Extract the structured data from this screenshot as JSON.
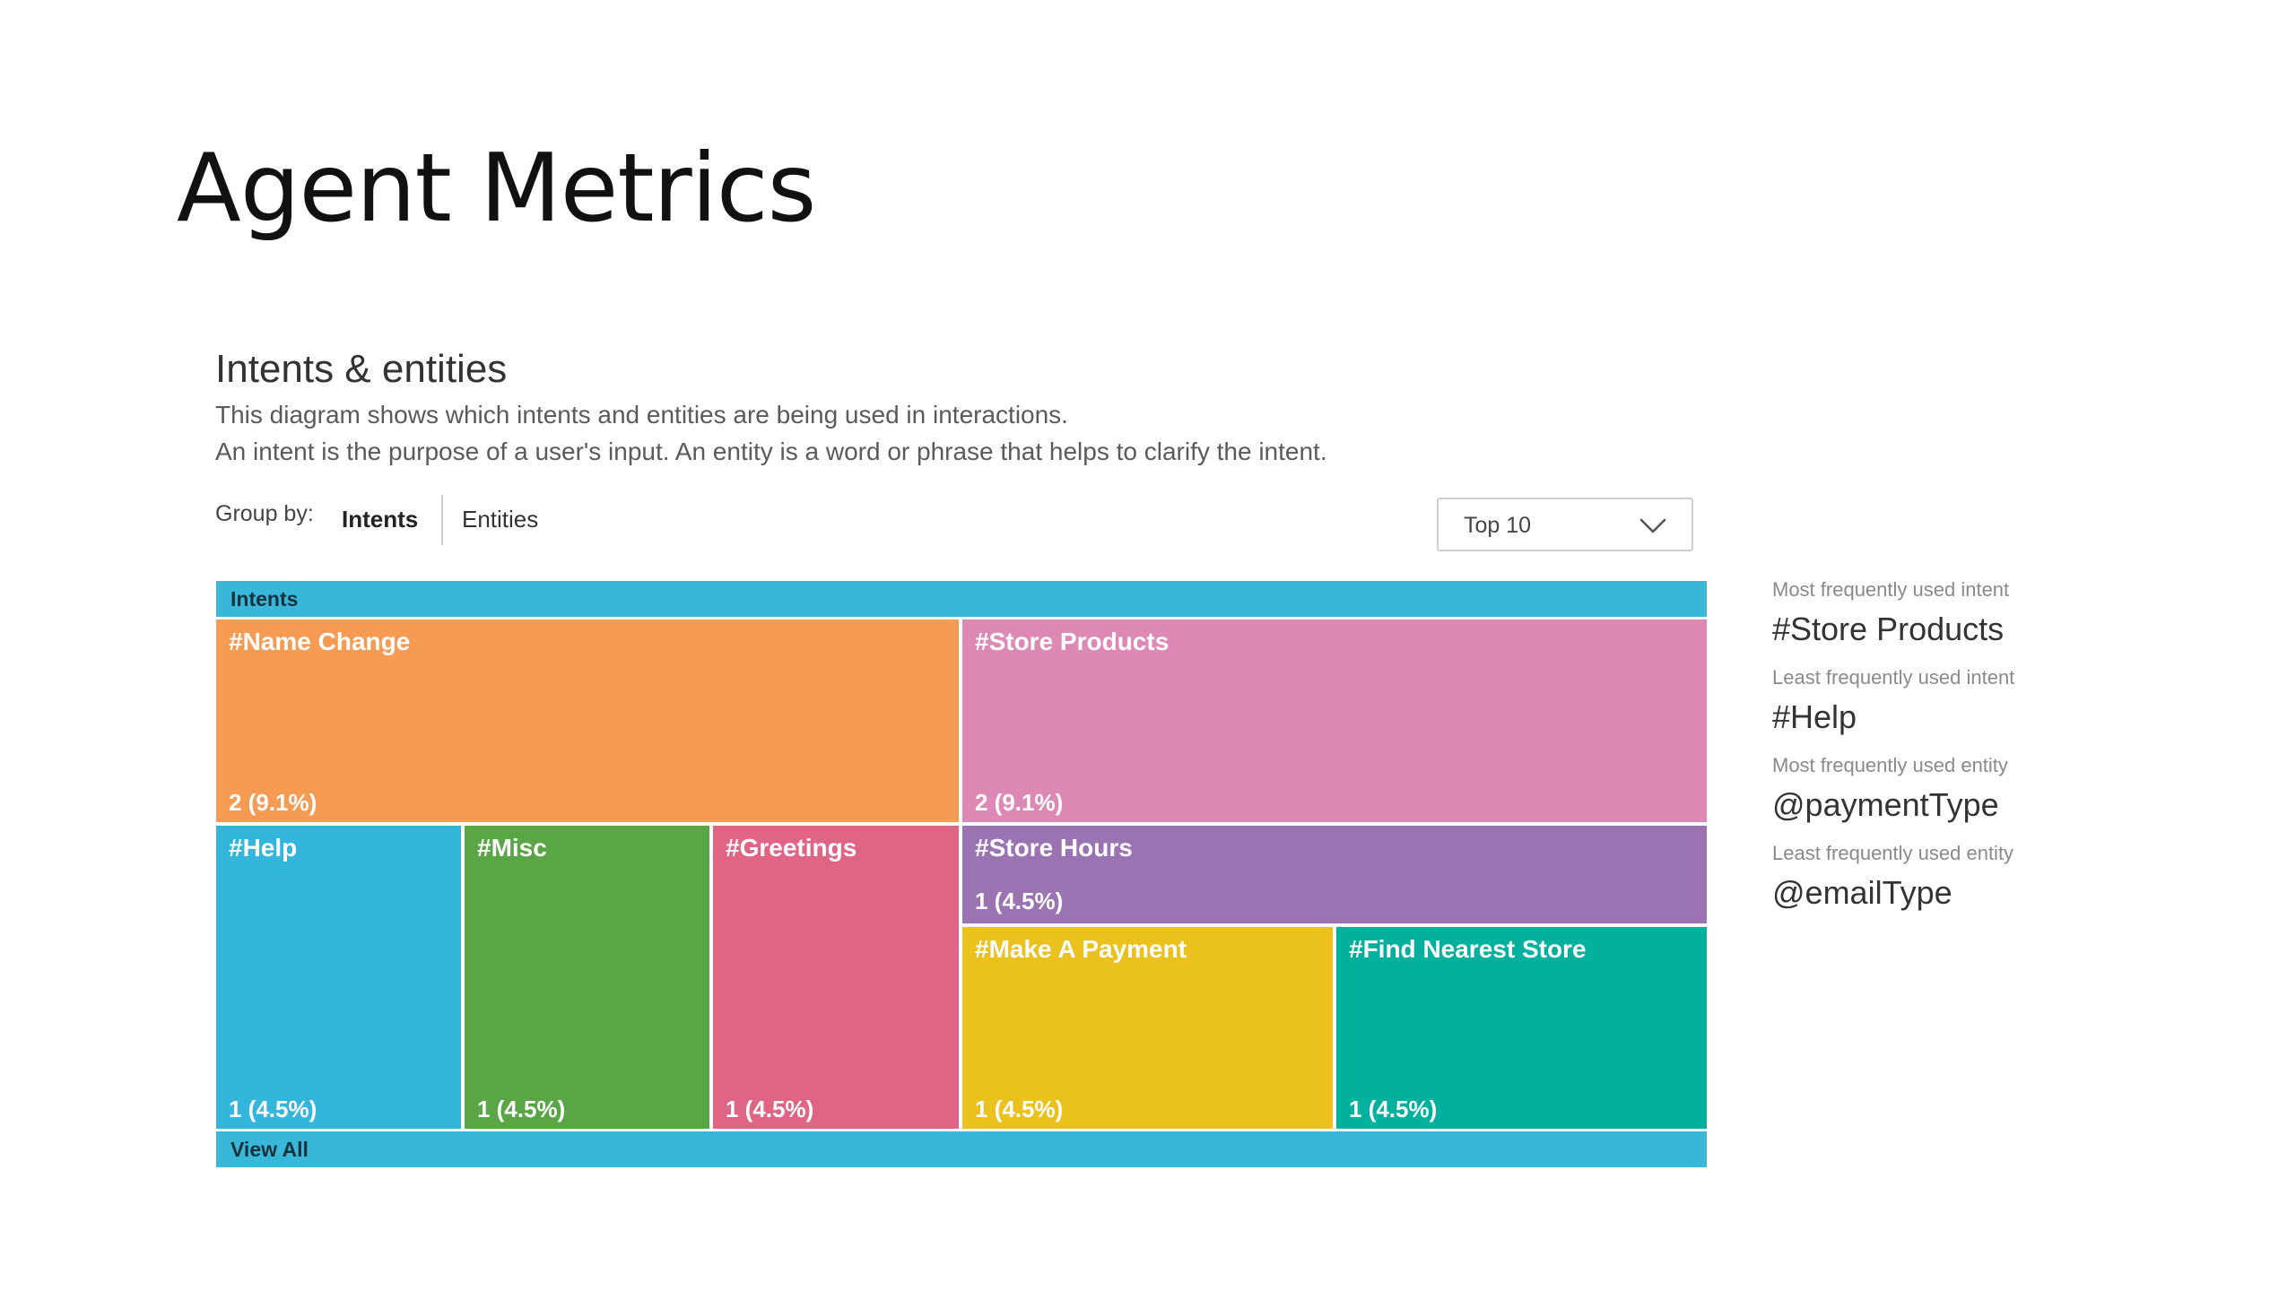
{
  "slide": {
    "title": "Agent Metrics"
  },
  "section": {
    "title": "Intents & entities",
    "description_line1": "This diagram shows which intents and entities are being used in interactions.",
    "description_line2": "An intent is the purpose of a user's input. An entity is a word or phrase that helps to clarify the intent."
  },
  "group_by": {
    "label": "Group by:",
    "tabs": [
      {
        "label": "Intents",
        "active": true
      },
      {
        "label": "Entities",
        "active": false
      }
    ]
  },
  "top_select": {
    "value": "Top 10",
    "icon": "chevron-down-icon"
  },
  "treemap": {
    "header_label": "Intents",
    "footer_label": "View All",
    "colors": {
      "bar": "#38b7d8",
      "name_change": "#f59b53",
      "store_products": "#de88b6",
      "help": "#33b5dc",
      "misc": "#5aa647",
      "greetings": "#e06484",
      "store_hours": "#9b73b2",
      "make_a_payment": "#ebc11d",
      "find_nearest_store": "#02b09e"
    },
    "tiles": [
      {
        "name": "#Name Change",
        "value": "2 (9.1%)"
      },
      {
        "name": "#Store Products",
        "value": "2 (9.1%)"
      },
      {
        "name": "#Help",
        "value": "1 (4.5%)"
      },
      {
        "name": "#Misc",
        "value": "1 (4.5%)"
      },
      {
        "name": "#Greetings",
        "value": "1 (4.5%)"
      },
      {
        "name": "#Store Hours",
        "value": "1 (4.5%)"
      },
      {
        "name": "#Make A Payment",
        "value": "1 (4.5%)"
      },
      {
        "name": "#Find Nearest Store",
        "value": "1 (4.5%)"
      }
    ]
  },
  "stats": [
    {
      "label": "Most frequently used intent",
      "value": "#Store Products"
    },
    {
      "label": "Least frequently used intent",
      "value": "#Help"
    },
    {
      "label": "Most frequently used entity",
      "value": "@paymentType"
    },
    {
      "label": "Least frequently used entity",
      "value": "@emailType"
    }
  ]
}
